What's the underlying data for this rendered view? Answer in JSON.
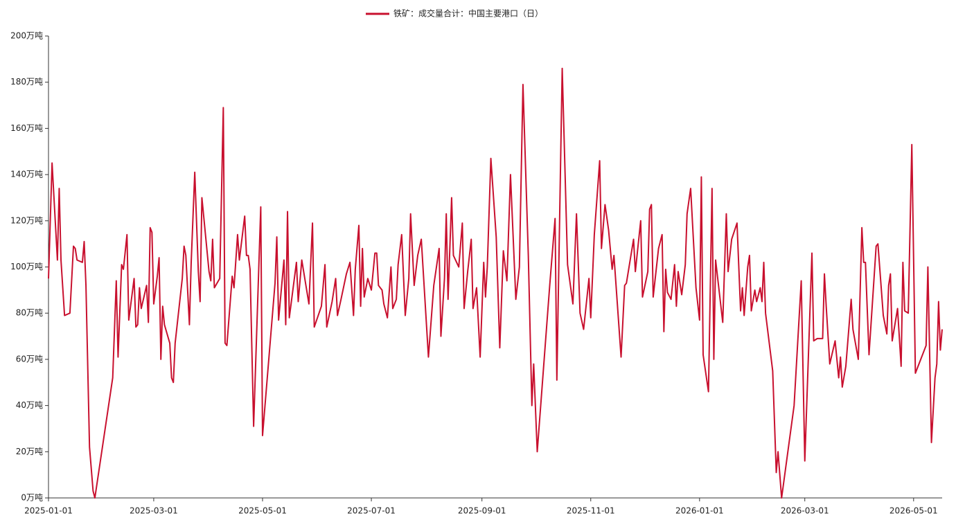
{
  "chart_data": {
    "type": "line",
    "series": [
      {
        "name": "铁矿：成交量合计：中国主要港口（日）",
        "color": "#c8102e",
        "values": [
          95,
          145,
          103,
          134,
          103,
          79,
          80,
          109,
          108,
          103,
          102,
          111,
          92,
          22,
          3,
          0,
          52,
          94,
          61,
          101,
          99,
          114,
          77,
          95,
          74,
          75,
          91,
          82,
          92,
          76,
          117,
          115,
          84,
          96,
          104,
          60,
          83,
          75,
          67,
          52,
          50,
          67,
          95,
          109,
          105,
          75,
          102,
          141,
          98,
          85,
          130,
          98,
          94,
          112,
          91,
          95,
          169,
          67,
          66,
          96,
          91,
          114,
          103,
          122,
          105,
          105,
          99,
          31,
          126,
          27,
          93,
          113,
          77,
          103,
          75,
          124,
          78,
          102,
          85,
          103,
          84,
          119,
          74,
          83,
          101,
          74,
          85,
          95,
          79,
          86,
          97,
          102,
          79,
          99,
          118,
          83,
          108,
          87,
          95,
          90,
          106,
          106,
          92,
          90,
          84,
          78,
          100,
          82,
          86,
          101,
          114,
          79,
          95,
          123,
          92,
          105,
          112,
          61,
          92,
          108,
          70,
          95,
          123,
          86,
          130,
          105,
          100,
          119,
          82,
          98,
          112,
          82,
          91,
          61,
          102,
          87,
          100,
          147,
          113,
          65,
          107,
          94,
          140,
          86,
          100,
          179,
          105,
          40,
          58,
          20,
          92,
          121,
          51,
          186,
          101,
          84,
          123,
          80,
          73,
          95,
          78,
          114,
          146,
          108,
          127,
          116,
          99,
          105,
          61,
          92,
          93,
          112,
          98,
          120,
          87,
          98,
          125,
          127,
          87,
          108,
          114,
          72,
          99,
          89,
          86,
          101,
          83,
          98,
          88,
          101,
          123,
          134,
          91,
          77,
          139,
          62,
          46,
          134,
          60,
          103,
          76,
          123,
          98,
          112,
          119,
          81,
          91,
          79,
          100,
          105,
          81,
          90,
          85,
          91,
          85,
          102,
          80,
          55,
          11,
          20,
          0,
          40,
          94,
          16,
          106,
          68,
          69,
          69,
          97,
          83,
          58,
          68,
          52,
          61,
          48,
          57,
          86,
          73,
          60,
          117,
          102,
          102,
          62,
          109,
          110,
          79,
          71,
          92,
          97,
          68,
          82,
          57,
          102,
          81,
          80,
          153,
          54,
          66,
          100,
          24,
          52,
          58,
          85,
          64,
          73
        ]
      }
    ],
    "x": [
      "2025-01-01",
      "2025-01-03",
      "2025-01-06",
      "2025-01-07",
      "2025-01-08",
      "2025-01-10",
      "2025-01-13",
      "2025-01-15",
      "2025-01-16",
      "2025-01-17",
      "2025-01-20",
      "2025-01-21",
      "2025-01-22",
      "2025-01-24",
      "2025-01-26",
      "2025-01-27",
      "2025-02-06",
      "2025-02-08",
      "2025-02-09",
      "2025-02-11",
      "2025-02-12",
      "2025-02-14",
      "2025-02-15",
      "2025-02-18",
      "2025-02-19",
      "2025-02-20",
      "2025-02-21",
      "2025-02-22",
      "2025-02-25",
      "2025-02-26",
      "2025-02-27",
      "2025-02-28",
      "2025-03-01",
      "2025-03-03",
      "2025-03-04",
      "2025-03-05",
      "2025-03-06",
      "2025-03-07",
      "2025-03-10",
      "2025-03-11",
      "2025-03-12",
      "2025-03-13",
      "2025-03-17",
      "2025-03-18",
      "2025-03-19",
      "2025-03-21",
      "2025-03-22",
      "2025-03-24",
      "2025-03-26",
      "2025-03-27",
      "2025-03-28",
      "2025-04-01",
      "2025-04-02",
      "2025-04-03",
      "2025-04-04",
      "2025-04-07",
      "2025-04-09",
      "2025-04-10",
      "2025-04-11",
      "2025-04-14",
      "2025-04-15",
      "2025-04-17",
      "2025-04-18",
      "2025-04-21",
      "2025-04-22",
      "2025-04-23",
      "2025-04-24",
      "2025-04-26",
      "2025-04-30",
      "2025-05-01",
      "2025-05-08",
      "2025-05-09",
      "2025-05-10",
      "2025-05-13",
      "2025-05-14",
      "2025-05-15",
      "2025-05-16",
      "2025-05-20",
      "2025-05-21",
      "2025-05-23",
      "2025-05-27",
      "2025-05-29",
      "2025-05-30",
      "2025-06-03",
      "2025-06-05",
      "2025-06-06",
      "2025-06-09",
      "2025-06-11",
      "2025-06-12",
      "2025-06-14",
      "2025-06-17",
      "2025-06-19",
      "2025-06-21",
      "2025-06-22",
      "2025-06-24",
      "2025-06-25",
      "2025-06-26",
      "2025-06-27",
      "2025-06-29",
      "2025-07-01",
      "2025-07-03",
      "2025-07-04",
      "2025-07-05",
      "2025-07-07",
      "2025-07-08",
      "2025-07-10",
      "2025-07-12",
      "2025-07-13",
      "2025-07-15",
      "2025-07-16",
      "2025-07-18",
      "2025-07-20",
      "2025-07-22",
      "2025-07-23",
      "2025-07-25",
      "2025-07-27",
      "2025-07-29",
      "2025-08-02",
      "2025-08-05",
      "2025-08-08",
      "2025-08-09",
      "2025-08-11",
      "2025-08-12",
      "2025-08-13",
      "2025-08-15",
      "2025-08-16",
      "2025-08-19",
      "2025-08-21",
      "2025-08-22",
      "2025-08-24",
      "2025-08-26",
      "2025-08-27",
      "2025-08-29",
      "2025-08-31",
      "2025-09-02",
      "2025-09-03",
      "2025-09-04",
      "2025-09-06",
      "2025-09-09",
      "2025-09-11",
      "2025-09-13",
      "2025-09-15",
      "2025-09-17",
      "2025-09-20",
      "2025-09-22",
      "2025-09-24",
      "2025-09-27",
      "2025-09-29",
      "2025-09-30",
      "2025-10-02",
      "2025-10-09",
      "2025-10-12",
      "2025-10-13",
      "2025-10-16",
      "2025-10-19",
      "2025-10-22",
      "2025-10-24",
      "2025-10-26",
      "2025-10-28",
      "2025-10-31",
      "2025-11-01",
      "2025-11-03",
      "2025-11-06",
      "2025-11-07",
      "2025-11-09",
      "2025-11-11",
      "2025-11-13",
      "2025-11-14",
      "2025-11-18",
      "2025-11-20",
      "2025-11-21",
      "2025-11-25",
      "2025-11-26",
      "2025-11-29",
      "2025-11-30",
      "2025-12-03",
      "2025-12-04",
      "2025-12-05",
      "2025-12-06",
      "2025-12-09",
      "2025-12-11",
      "2025-12-12",
      "2025-12-13",
      "2025-12-14",
      "2025-12-16",
      "2025-12-18",
      "2025-12-19",
      "2025-12-20",
      "2025-12-22",
      "2025-12-24",
      "2025-12-25",
      "2025-12-27",
      "2025-12-30",
      "2026-01-01",
      "2026-01-02",
      "2026-01-03",
      "2026-01-06",
      "2026-01-08",
      "2026-01-09",
      "2026-01-10",
      "2026-01-14",
      "2026-01-16",
      "2026-01-17",
      "2026-01-19",
      "2026-01-22",
      "2026-01-24",
      "2026-01-25",
      "2026-01-26",
      "2026-01-28",
      "2026-01-29",
      "2026-01-30",
      "2026-02-01",
      "2026-02-02",
      "2026-02-04",
      "2026-02-05",
      "2026-02-06",
      "2026-02-07",
      "2026-02-11",
      "2026-02-13",
      "2026-02-14",
      "2026-02-16",
      "2026-02-23",
      "2026-02-27",
      "2026-03-01",
      "2026-03-05",
      "2026-03-06",
      "2026-03-08",
      "2026-03-11",
      "2026-03-12",
      "2026-03-13",
      "2026-03-15",
      "2026-03-18",
      "2026-03-20",
      "2026-03-21",
      "2026-03-22",
      "2026-03-24",
      "2026-03-27",
      "2026-03-28",
      "2026-03-31",
      "2026-04-02",
      "2026-04-03",
      "2026-04-04",
      "2026-04-06",
      "2026-04-10",
      "2026-04-11",
      "2026-04-14",
      "2026-04-16",
      "2026-04-17",
      "2026-04-18",
      "2026-04-19",
      "2026-04-22",
      "2026-04-24",
      "2026-04-25",
      "2026-04-26",
      "2026-04-28",
      "2026-04-30",
      "2026-05-02",
      "2026-05-08",
      "2026-05-09",
      "2026-05-11",
      "2026-05-13",
      "2026-05-14",
      "2026-05-15",
      "2026-05-16",
      "2026-05-17"
    ],
    "xlim": [
      "2025-01-01",
      "2026-05-17"
    ],
    "xticks": [
      "2025-01-01",
      "2025-03-01",
      "2025-05-01",
      "2025-07-01",
      "2025-09-01",
      "2025-11-01",
      "2026-01-01",
      "2026-03-01",
      "2026-05-01"
    ],
    "ylim": [
      0,
      200
    ],
    "yticks": [
      {
        "value": 0,
        "label": "0万吨"
      },
      {
        "value": 20,
        "label": "20万吨"
      },
      {
        "value": 40,
        "label": "40万吨"
      },
      {
        "value": 60,
        "label": "60万吨"
      },
      {
        "value": 80,
        "label": "80万吨"
      },
      {
        "value": 100,
        "label": "100万吨"
      },
      {
        "value": 120,
        "label": "120万吨"
      },
      {
        "value": 140,
        "label": "140万吨"
      },
      {
        "value": 160,
        "label": "160万吨"
      },
      {
        "value": 180,
        "label": "180万吨"
      },
      {
        "value": 200,
        "label": "200万吨"
      }
    ],
    "grid": false,
    "legend": "top"
  }
}
